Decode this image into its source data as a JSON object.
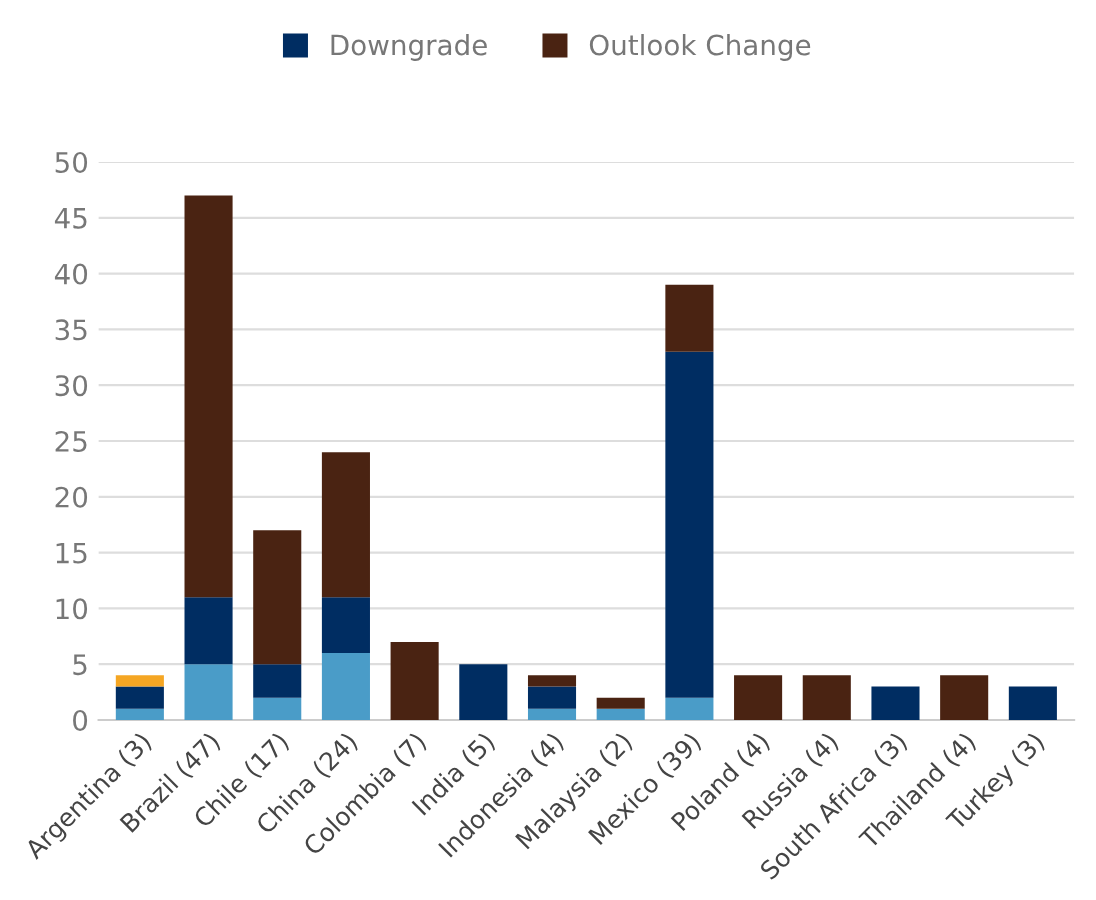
{
  "chart_data": {
    "type": "bar",
    "stacked": true,
    "categories": [
      "Argentina (3)",
      "Brazil (47)",
      "Chile (17)",
      "China (24)",
      "Colombia (7)",
      "India (5)",
      "Indonesia (4)",
      "Malaysia (2)",
      "Mexico (39)",
      "Poland (4)",
      "Russia (4)",
      "South Africa (3)",
      "Thailand (4)",
      "Turkey (3)"
    ],
    "series": [
      {
        "color": "#4a9cc8",
        "values": [
          1,
          5,
          2,
          6,
          0,
          0,
          1,
          1,
          2,
          0,
          0,
          0,
          0,
          0
        ]
      },
      {
        "name": "Downgrade",
        "color": "#002d62",
        "values": [
          2,
          6,
          3,
          5,
          0,
          5,
          2,
          0,
          31,
          0,
          0,
          3,
          0,
          3
        ]
      },
      {
        "name": "Outlook Change",
        "color": "#4a2312",
        "values": [
          0,
          36,
          12,
          13,
          7,
          0,
          1,
          1,
          6,
          4,
          4,
          0,
          4,
          0
        ]
      },
      {
        "color": "#f5a623",
        "values": [
          1,
          0,
          0,
          0,
          0,
          0,
          0,
          0,
          0,
          0,
          0,
          0,
          0,
          0
        ]
      }
    ],
    "ylim": [
      0,
      50
    ],
    "yticks": [
      0,
      5,
      10,
      15,
      20,
      25,
      30,
      35,
      40,
      45,
      50
    ],
    "grid": "y",
    "legend": "top"
  }
}
